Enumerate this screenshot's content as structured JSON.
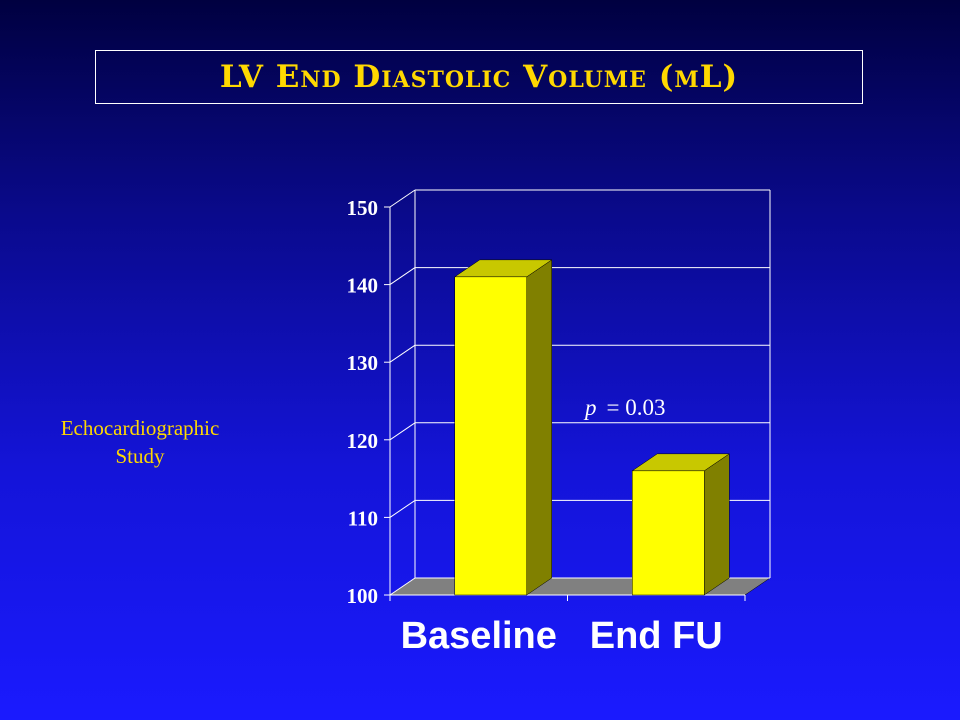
{
  "title": "LV End Diastolic Volume (mL)",
  "side_note": {
    "line1": "Echocardiographic",
    "line2": "Study"
  },
  "colors": {
    "bar_front": "#ffff00",
    "bar_side": "#808000",
    "bar_top": "#c8c800",
    "floor": "#808080",
    "title_text": "#ffd800",
    "grid": "#ffffff",
    "axis_text": "#ffffff"
  },
  "chart_data": {
    "type": "bar",
    "categories": [
      "Baseline",
      "End FU"
    ],
    "values": [
      141,
      116
    ],
    "ylim": [
      100,
      150
    ],
    "yticks": [
      100,
      110,
      120,
      130,
      140,
      150
    ],
    "annotation": {
      "p_label": "p",
      "p_value": "= 0.03"
    },
    "grid": true,
    "legend": "none"
  }
}
